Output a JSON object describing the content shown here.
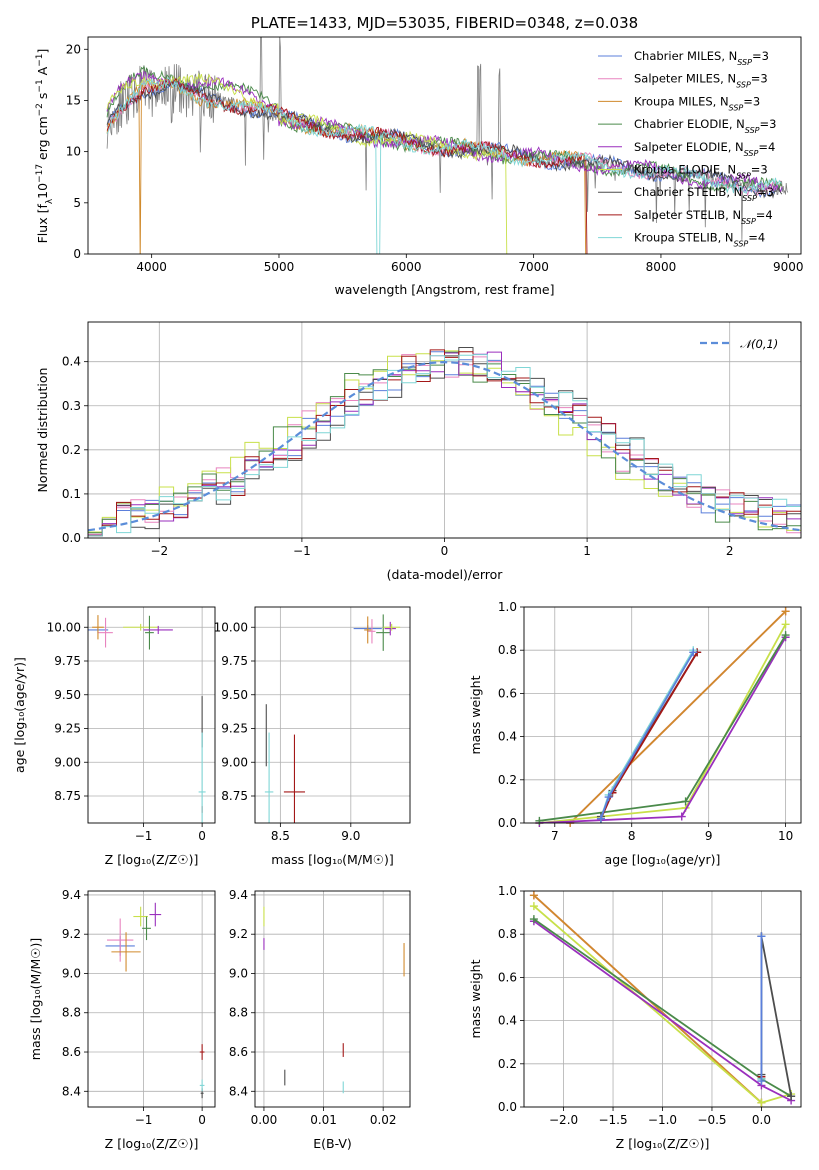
{
  "colors": {
    "Chabrier MILES": "#5b7fdb",
    "Salpeter MILES": "#e884bf",
    "Kroupa MILES": "#d08a2c",
    "Chabrier ELODIE": "#4a8a4a",
    "Salpeter ELODIE": "#9a2fbd",
    "Kroupa ELODIE": "#c8e04a",
    "Chabrier STELIB": "#4d4d4d",
    "Salpeter STELIB": "#a31818",
    "Kroupa STELIB": "#7fd6d6",
    "normal": "#5b8dd9"
  },
  "chart_data": [
    {
      "type": "line",
      "title": "PLATE=1433, MJD=53035, FIBERID=0348, z=0.038",
      "xlabel": "wavelength [Angstrom, rest frame]",
      "ylabel": "Flux [f_λ 10^-17 erg cm^-2 s^-1 A^-1]",
      "xlim": [
        3500,
        9100
      ],
      "ylim": [
        0,
        21.2
      ],
      "xticks": [
        "4000",
        "5000",
        "6000",
        "7000",
        "8000",
        "9000"
      ],
      "yticks": [
        "0",
        "5",
        "10",
        "15",
        "20"
      ],
      "legend_placement": "upper-right",
      "legend": [
        {
          "label": "Chabrier MILES, N",
          "sub": "SSP",
          "n": "=3",
          "key": "Chabrier MILES"
        },
        {
          "label": "Salpeter MILES, N",
          "sub": "SSP",
          "n": "=3",
          "key": "Salpeter MILES"
        },
        {
          "label": "Kroupa MILES, N",
          "sub": "SSP",
          "n": "=3",
          "key": "Kroupa MILES"
        },
        {
          "label": "Chabrier ELODIE, N",
          "sub": "SSP",
          "n": "=3",
          "key": "Chabrier ELODIE"
        },
        {
          "label": "Salpeter ELODIE, N",
          "sub": "SSP",
          "n": "=4",
          "key": "Salpeter ELODIE"
        },
        {
          "label": "Kroupa ELODIE, N",
          "sub": "SSP",
          "n": "=3",
          "key": "Kroupa ELODIE"
        },
        {
          "label": "Chabrier STELIB, N",
          "sub": "SSP",
          "n": "=3",
          "key": "Chabrier STELIB"
        },
        {
          "label": "Salpeter STELIB, N",
          "sub": "SSP",
          "n": "=4",
          "key": "Salpeter STELIB"
        },
        {
          "label": "Kroupa STELIB, N",
          "sub": "SSP",
          "n": "=4",
          "key": "Kroupa STELIB"
        }
      ],
      "data_series": {
        "x": [
          3650,
          3750,
          3850,
          3950,
          4050,
          4150,
          4250,
          4350,
          4500,
          4700,
          4900,
          5100,
          5300,
          5500,
          5700,
          5900,
          6100,
          6300,
          6500,
          6700,
          6900,
          7100,
          7300,
          7400,
          7600,
          7800,
          8000,
          8200,
          8400,
          8600,
          8800
        ],
        "y": [
          12.8,
          14.5,
          15.5,
          16.2,
          16.0,
          16.3,
          15.8,
          15.5,
          15.2,
          14.5,
          13.8,
          13.0,
          12.5,
          12.0,
          11.5,
          11.2,
          10.8,
          10.5,
          10.2,
          9.9,
          9.6,
          9.3,
          9.1,
          8.9,
          8.6,
          8.3,
          8.0,
          7.6,
          7.2,
          6.9,
          6.5
        ]
      }
    },
    {
      "type": "histogram",
      "xlabel": "(data-model)/error",
      "ylabel": "Normed distribution",
      "xlim": [
        -2.5,
        2.5
      ],
      "ylim": [
        0,
        0.49
      ],
      "xticks": [
        "−2",
        "−1",
        "0",
        "1",
        "2"
      ],
      "yticks": [
        "0.0",
        "0.1",
        "0.2",
        "0.3",
        "0.4"
      ],
      "legend": "𝒩(0,1)",
      "legend_placement": "upper-right",
      "bin_width": 0.1,
      "series": [
        {
          "key": "Chabrier MILES",
          "offset": 0.05
        },
        {
          "key": "Salpeter MILES",
          "offset": 0.0
        },
        {
          "key": "Kroupa ELODIE",
          "offset": -0.12
        },
        {
          "key": "Chabrier ELODIE",
          "offset": -0.08
        },
        {
          "key": "Salpeter ELODIE",
          "offset": 0.1
        },
        {
          "key": "Chabrier STELIB",
          "offset": 0.15
        },
        {
          "key": "Salpeter STELIB",
          "offset": 0.08
        },
        {
          "key": "Kroupa STELIB",
          "offset": 0.12
        }
      ]
    },
    {
      "type": "scatter",
      "xlabel": "Z [log₁₀(Z/Z☉)]",
      "ylabel": "age  [log₁₀(age/yr)]",
      "xlim": [
        -1.95,
        0.22
      ],
      "ylim": [
        8.55,
        10.15
      ],
      "xticks": [
        "−1",
        "0"
      ],
      "yticks": [
        "8.75",
        "9.00",
        "9.25",
        "9.50",
        "9.75",
        "10.00"
      ],
      "points": [
        {
          "key": "Chabrier MILES",
          "x": -1.78,
          "y": 9.98,
          "xerr": 0.35,
          "yerr": 0.05
        },
        {
          "key": "Salpeter MILES",
          "x": -1.65,
          "y": 9.96,
          "xerr": 0.25,
          "yerr": 0.22
        },
        {
          "key": "Kroupa MILES",
          "x": -1.78,
          "y": 10.0,
          "xerr": 0.2,
          "yerr": 0.18
        },
        {
          "key": "Kroupa ELODIE",
          "x": -1.05,
          "y": 10.0,
          "xerr": 0.6,
          "yerr": 0.05
        },
        {
          "key": "Chabrier ELODIE",
          "x": -0.9,
          "y": 9.96,
          "xerr": 0.15,
          "yerr": 0.25
        },
        {
          "key": "Salpeter ELODIE",
          "x": -0.75,
          "y": 9.98,
          "xerr": 0.5,
          "yerr": 0.06
        },
        {
          "key": "Chabrier STELIB",
          "x": 0.0,
          "y": 9.3,
          "xerr": 0.0,
          "yerr": 0.38
        },
        {
          "key": "Salpeter STELIB",
          "x": 0.0,
          "y": 8.65,
          "xerr": 0.0,
          "yerr": 0.05
        },
        {
          "key": "Kroupa STELIB",
          "x": 0.0,
          "y": 8.78,
          "xerr": 0.12,
          "yerr": 0.88
        }
      ]
    },
    {
      "type": "scatter",
      "xlabel": "mass [log₁₀(M/M☉)]",
      "ylabel": "",
      "xlim": [
        8.32,
        9.42
      ],
      "ylim": [
        8.55,
        10.15
      ],
      "xticks": [
        "8.5",
        "9.0"
      ],
      "yticks": [
        "8.75",
        "9.00",
        "9.25",
        "9.50",
        "9.75",
        "10.00"
      ],
      "points": [
        {
          "key": "Chabrier STELIB",
          "x": 8.4,
          "y": 9.2,
          "xerr": 0.0,
          "yerr": 0.46
        },
        {
          "key": "Kroupa STELIB",
          "x": 8.42,
          "y": 8.78,
          "xerr": 0.06,
          "yerr": 0.88
        },
        {
          "key": "Salpeter STELIB",
          "x": 8.6,
          "y": 8.78,
          "xerr": 0.15,
          "yerr": 0.85
        },
        {
          "key": "Chabrier MILES",
          "x": 9.12,
          "y": 9.99,
          "xerr": 0.2,
          "yerr": 0.05
        },
        {
          "key": "Salpeter MILES",
          "x": 9.15,
          "y": 9.97,
          "xerr": 0.05,
          "yerr": 0.18
        },
        {
          "key": "Kroupa MILES",
          "x": 9.12,
          "y": 9.98,
          "xerr": 0.05,
          "yerr": 0.2
        },
        {
          "key": "Chabrier ELODIE",
          "x": 9.23,
          "y": 9.96,
          "xerr": 0.1,
          "yerr": 0.27
        },
        {
          "key": "Salpeter ELODIE",
          "x": 9.28,
          "y": 9.99,
          "xerr": 0.08,
          "yerr": 0.1
        },
        {
          "key": "Kroupa ELODIE",
          "x": 9.29,
          "y": 10.0,
          "xerr": 0.12,
          "yerr": 0.05
        }
      ]
    },
    {
      "type": "line",
      "xlabel": "age  [log₁₀(age/yr)]",
      "ylabel": "mass weight",
      "xlim": [
        6.6,
        10.2
      ],
      "ylim": [
        0,
        1.0
      ],
      "xticks": [
        "7",
        "8",
        "9",
        "10"
      ],
      "yticks": [
        "0.0",
        "0.2",
        "0.4",
        "0.6",
        "0.8",
        "1.0"
      ],
      "series": [
        {
          "key": "Salpeter MILES",
          "x": [
            7.2,
            10.0
          ],
          "y": [
            0.0,
            0.98
          ]
        },
        {
          "key": "Kroupa MILES",
          "x": [
            7.2,
            10.0
          ],
          "y": [
            0.0,
            0.98
          ]
        },
        {
          "key": "Kroupa ELODIE",
          "x": [
            6.8,
            8.7,
            10.0
          ],
          "y": [
            0.0,
            0.07,
            0.92
          ]
        },
        {
          "key": "Salpeter ELODIE",
          "x": [
            6.8,
            8.65,
            10.0
          ],
          "y": [
            0.0,
            0.03,
            0.86
          ]
        },
        {
          "key": "Chabrier ELODIE",
          "x": [
            6.8,
            8.7,
            10.0
          ],
          "y": [
            0.01,
            0.1,
            0.87
          ]
        },
        {
          "key": "Chabrier STELIB",
          "x": [
            7.6,
            7.75,
            8.85
          ],
          "y": [
            0.03,
            0.15,
            0.79
          ]
        },
        {
          "key": "Salpeter STELIB",
          "x": [
            7.6,
            7.75,
            8.85
          ],
          "y": [
            0.02,
            0.14,
            0.79
          ]
        },
        {
          "key": "Kroupa STELIB",
          "x": [
            7.6,
            7.7,
            8.8
          ],
          "y": [
            0.02,
            0.13,
            0.8
          ]
        },
        {
          "key": "Chabrier MILES",
          "x": [
            7.6,
            7.7,
            8.8
          ],
          "y": [
            0.02,
            0.12,
            0.79
          ]
        }
      ]
    },
    {
      "type": "scatter",
      "xlabel": "Z [log₁₀(Z/Z☉)]",
      "ylabel": "mass [log₁₀(M/M☉)]",
      "xlim": [
        -1.95,
        0.22
      ],
      "ylim": [
        8.32,
        9.42
      ],
      "xticks": [
        "−1",
        "0"
      ],
      "yticks": [
        "8.4",
        "8.6",
        "8.8",
        "9.0",
        "9.2",
        "9.4"
      ],
      "points": [
        {
          "key": "Chabrier MILES",
          "x": -1.4,
          "y": 9.14,
          "xerr": 0.5,
          "yerr": 0.1
        },
        {
          "key": "Salpeter MILES",
          "x": -1.4,
          "y": 9.17,
          "xerr": 0.45,
          "yerr": 0.22
        },
        {
          "key": "Kroupa MILES",
          "x": -1.3,
          "y": 9.11,
          "xerr": 0.5,
          "yerr": 0.2
        },
        {
          "key": "Kroupa ELODIE",
          "x": -1.05,
          "y": 9.29,
          "xerr": 0.25,
          "yerr": 0.1
        },
        {
          "key": "Chabrier ELODIE",
          "x": -0.95,
          "y": 9.23,
          "xerr": 0.15,
          "yerr": 0.12
        },
        {
          "key": "Salpeter ELODIE",
          "x": -0.8,
          "y": 9.3,
          "xerr": 0.2,
          "yerr": 0.12
        },
        {
          "key": "Chabrier STELIB",
          "x": 0.0,
          "y": 8.39,
          "xerr": 0.05,
          "yerr": 0.05
        },
        {
          "key": "Salpeter STELIB",
          "x": 0.0,
          "y": 8.6,
          "xerr": 0.08,
          "yerr": 0.08
        },
        {
          "key": "Kroupa STELIB",
          "x": 0.0,
          "y": 8.43,
          "xerr": 0.08,
          "yerr": 0.06
        }
      ]
    },
    {
      "type": "scatter",
      "xlabel": "E(B-V)",
      "ylabel": "",
      "xlim": [
        -0.0015,
        0.0245
      ],
      "ylim": [
        8.32,
        9.42
      ],
      "xticks": [
        "0.00",
        "0.01",
        "0.02"
      ],
      "yticks": [
        "8.4",
        "8.6",
        "8.8",
        "9.0",
        "9.2",
        "9.4"
      ],
      "points": [
        {
          "key": "Kroupa ELODIE",
          "x": 0.0,
          "y": 9.29,
          "xerr": 0,
          "yerr": 0.1
        },
        {
          "key": "Salpeter ELODIE",
          "x": 0.0,
          "y": 9.15,
          "xerr": 0,
          "yerr": 0.06
        },
        {
          "key": "Chabrier STELIB",
          "x": 0.0035,
          "y": 8.47,
          "xerr": 0,
          "yerr": 0.08
        },
        {
          "key": "Salpeter STELIB",
          "x": 0.0133,
          "y": 8.61,
          "xerr": 0,
          "yerr": 0.07
        },
        {
          "key": "Kroupa STELIB",
          "x": 0.0133,
          "y": 8.42,
          "xerr": 0,
          "yerr": 0.06
        },
        {
          "key": "Kroupa MILES",
          "x": 0.0235,
          "y": 9.07,
          "xerr": 0,
          "yerr": 0.17
        }
      ]
    },
    {
      "type": "line",
      "xlabel": "Z [log₁₀(Z/Z☉)]",
      "ylabel": "mass weight",
      "xlim": [
        -2.4,
        0.4
      ],
      "ylim": [
        0,
        1.0
      ],
      "xticks": [
        "−2.0",
        "−1.5",
        "−1.0",
        "−0.5",
        "0.0"
      ],
      "yticks": [
        "0.0",
        "0.2",
        "0.4",
        "0.6",
        "0.8",
        "1.0"
      ],
      "series": [
        {
          "key": "Salpeter MILES",
          "x": [
            -2.3,
            0.0
          ],
          "y": [
            0.98,
            0.02
          ]
        },
        {
          "key": "Kroupa MILES",
          "x": [
            -2.3,
            0.0
          ],
          "y": [
            0.98,
            0.02
          ]
        },
        {
          "key": "Kroupa ELODIE",
          "x": [
            -2.3,
            0.0,
            0.3
          ],
          "y": [
            0.93,
            0.02,
            0.06
          ]
        },
        {
          "key": "Salpeter ELODIE",
          "x": [
            -2.3,
            0.0,
            0.3
          ],
          "y": [
            0.86,
            0.1,
            0.03
          ]
        },
        {
          "key": "Chabrier ELODIE",
          "x": [
            -2.3,
            0.0,
            0.3
          ],
          "y": [
            0.87,
            0.13,
            0.05
          ]
        },
        {
          "key": "Chabrier STELIB",
          "x": [
            0.0,
            0.0,
            0.3
          ],
          "y": [
            0.15,
            0.79,
            0.05
          ]
        },
        {
          "key": "Salpeter STELIB",
          "x": [
            0.0,
            0.0
          ],
          "y": [
            0.14,
            0.79
          ]
        },
        {
          "key": "Kroupa STELIB",
          "x": [
            0.0,
            0.0
          ],
          "y": [
            0.13,
            0.79
          ]
        },
        {
          "key": "Chabrier MILES",
          "x": [
            0.0,
            0.0
          ],
          "y": [
            0.12,
            0.79
          ]
        }
      ]
    }
  ]
}
